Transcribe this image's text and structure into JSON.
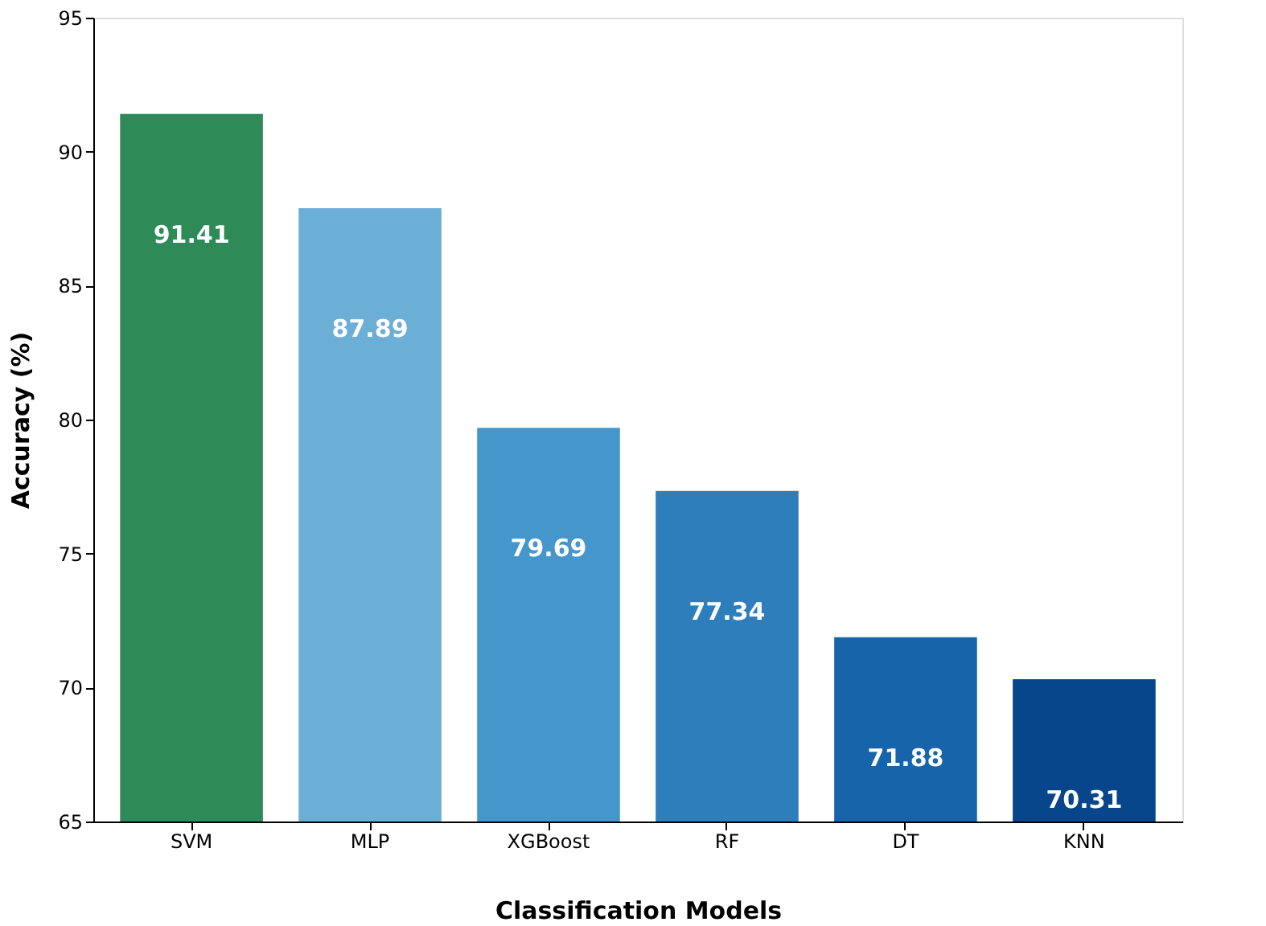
{
  "chart_data": {
    "type": "bar",
    "xlabel": "Classification Models",
    "ylabel": "Accuracy (%)",
    "categories": [
      "SVM",
      "MLP",
      "XGBoost",
      "RF",
      "DT",
      "KNN"
    ],
    "values": [
      91.41,
      87.89,
      79.69,
      77.34,
      71.88,
      70.31
    ],
    "colors": [
      "#2e8b57",
      "#6baed6",
      "#4596cb",
      "#2f7ebc",
      "#1764ab",
      "#08468b"
    ],
    "ylim": [
      65,
      95
    ],
    "yticks": [
      65,
      70,
      75,
      80,
      85,
      90,
      95
    ],
    "grid": false,
    "data_labels": true
  }
}
